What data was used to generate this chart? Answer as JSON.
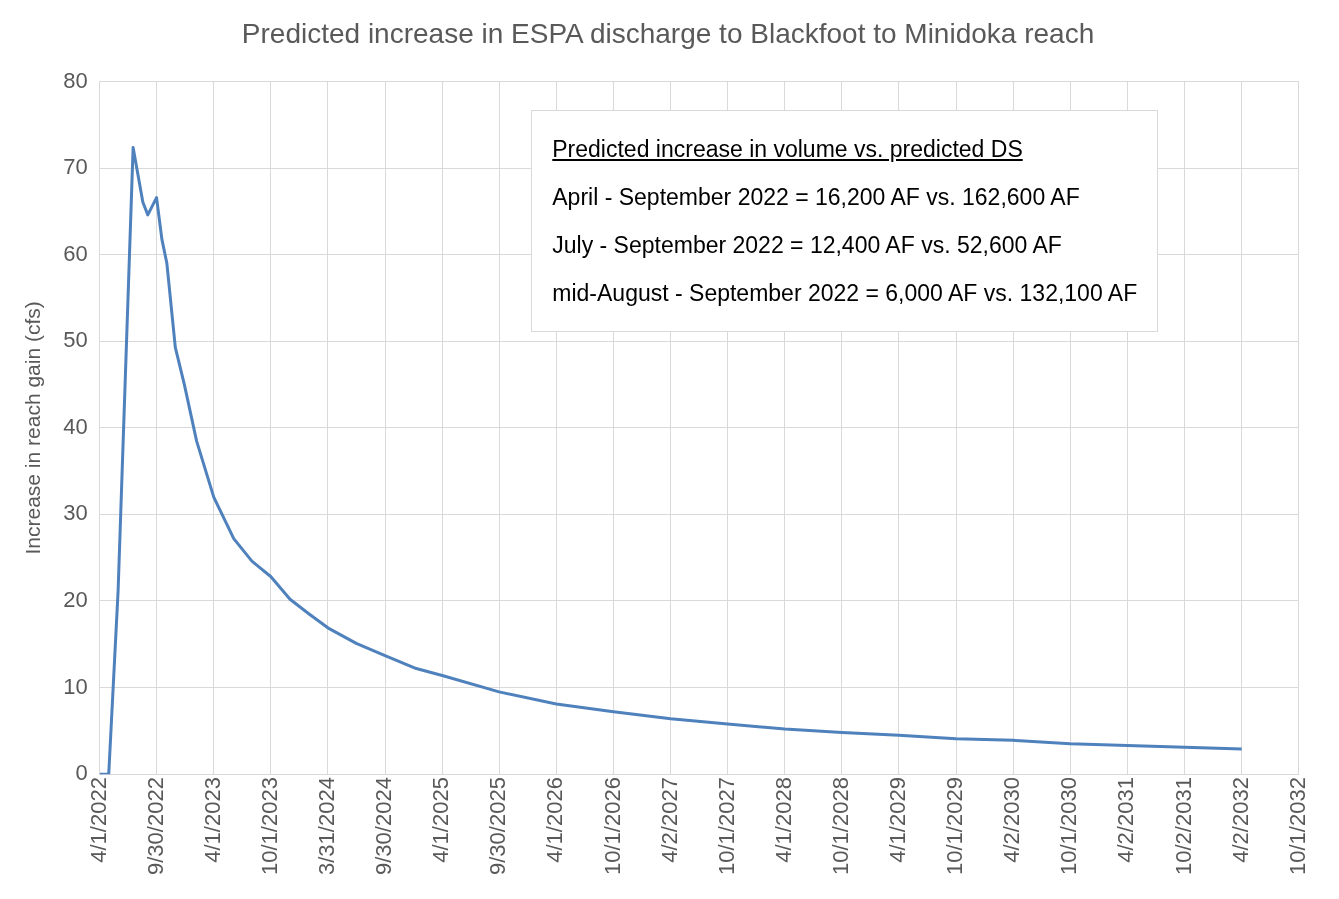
{
  "chart_data": {
    "type": "line",
    "title": "Predicted increase in ESPA discharge to Blackfoot to Minidoka reach",
    "ylabel": "Increase in reach gain (cfs)",
    "annotations": [
      "Predicted increase in volume vs. predicted DS",
      "April - September 2022 = 16,200 AF vs. 162,600 AF",
      "July - September 2022 = 12,400 AF vs. 52,600 AF",
      "mid-August - September 2022 = 6,000 AF vs. 132,100 AF"
    ],
    "x": [
      "2022-04-01",
      "2022-04-30",
      "2022-05-30",
      "2022-07-17",
      "2022-08-17",
      "2022-09-02",
      "2022-09-30",
      "2022-10-17",
      "2022-11-02",
      "2022-11-29",
      "2022-12-28",
      "2023-02-05",
      "2023-04-01",
      "2023-06-04",
      "2023-08-01",
      "2023-10-01",
      "2023-12-01",
      "2024-01-31",
      "2024-03-31",
      "2024-06-30",
      "2024-09-30",
      "2025-01-08",
      "2025-04-01",
      "2025-09-30",
      "2026-04-01",
      "2026-10-01",
      "2027-04-02",
      "2027-10-01",
      "2028-04-01",
      "2028-10-01",
      "2029-04-01",
      "2029-10-01",
      "2030-04-02",
      "2030-10-01",
      "2031-04-02",
      "2031-10-02",
      "2032-04-02"
    ],
    "series": [
      {
        "color": "#4f81bd",
        "values": [
          0,
          0,
          21.2,
          72.4,
          66.1,
          64.6,
          66.6,
          61.8,
          59,
          49.3,
          45,
          38.5,
          32,
          27.2,
          24.6,
          22.8,
          20.2,
          18.5,
          16.9,
          15.1,
          13.7,
          12.2,
          11.4,
          9.5,
          8.1,
          7.2,
          6.4,
          5.8,
          5.2,
          4.8,
          4.5,
          4.1,
          3.9,
          3.5,
          3.3,
          3.1,
          2.9
        ]
      }
    ],
    "xlim": [
      "2022-04-01",
      "2032-10-01"
    ],
    "xticks": [
      {
        "value": "2022-04-01",
        "label": "4/1/2022"
      },
      {
        "value": "2022-09-30",
        "label": "9/30/2022"
      },
      {
        "value": "2023-04-01",
        "label": "4/1/2023"
      },
      {
        "value": "2023-10-01",
        "label": "10/1/2023"
      },
      {
        "value": "2024-03-31",
        "label": "3/31/2024"
      },
      {
        "value": "2024-09-30",
        "label": "9/30/2024"
      },
      {
        "value": "2025-04-01",
        "label": "4/1/2025"
      },
      {
        "value": "2025-09-30",
        "label": "9/30/2025"
      },
      {
        "value": "2026-04-01",
        "label": "4/1/2026"
      },
      {
        "value": "2026-10-01",
        "label": "10/1/2026"
      },
      {
        "value": "2027-04-02",
        "label": "4/2/2027"
      },
      {
        "value": "2027-10-01",
        "label": "10/1/2027"
      },
      {
        "value": "2028-04-01",
        "label": "4/1/2028"
      },
      {
        "value": "2028-10-01",
        "label": "10/1/2028"
      },
      {
        "value": "2029-04-01",
        "label": "4/1/2029"
      },
      {
        "value": "2029-10-01",
        "label": "10/1/2029"
      },
      {
        "value": "2030-04-02",
        "label": "4/2/2030"
      },
      {
        "value": "2030-10-01",
        "label": "10/1/2030"
      },
      {
        "value": "2031-04-02",
        "label": "4/2/2031"
      },
      {
        "value": "2031-10-02",
        "label": "10/2/2031"
      },
      {
        "value": "2032-04-02",
        "label": "4/2/2032"
      },
      {
        "value": "2032-10-01",
        "label": "10/1/2032"
      }
    ],
    "ylim": [
      0,
      80
    ],
    "yticks": [
      0,
      10,
      20,
      30,
      40,
      50,
      60,
      70,
      80
    ],
    "grid": true,
    "legend": false,
    "marker": "none",
    "line_style": "solid"
  }
}
